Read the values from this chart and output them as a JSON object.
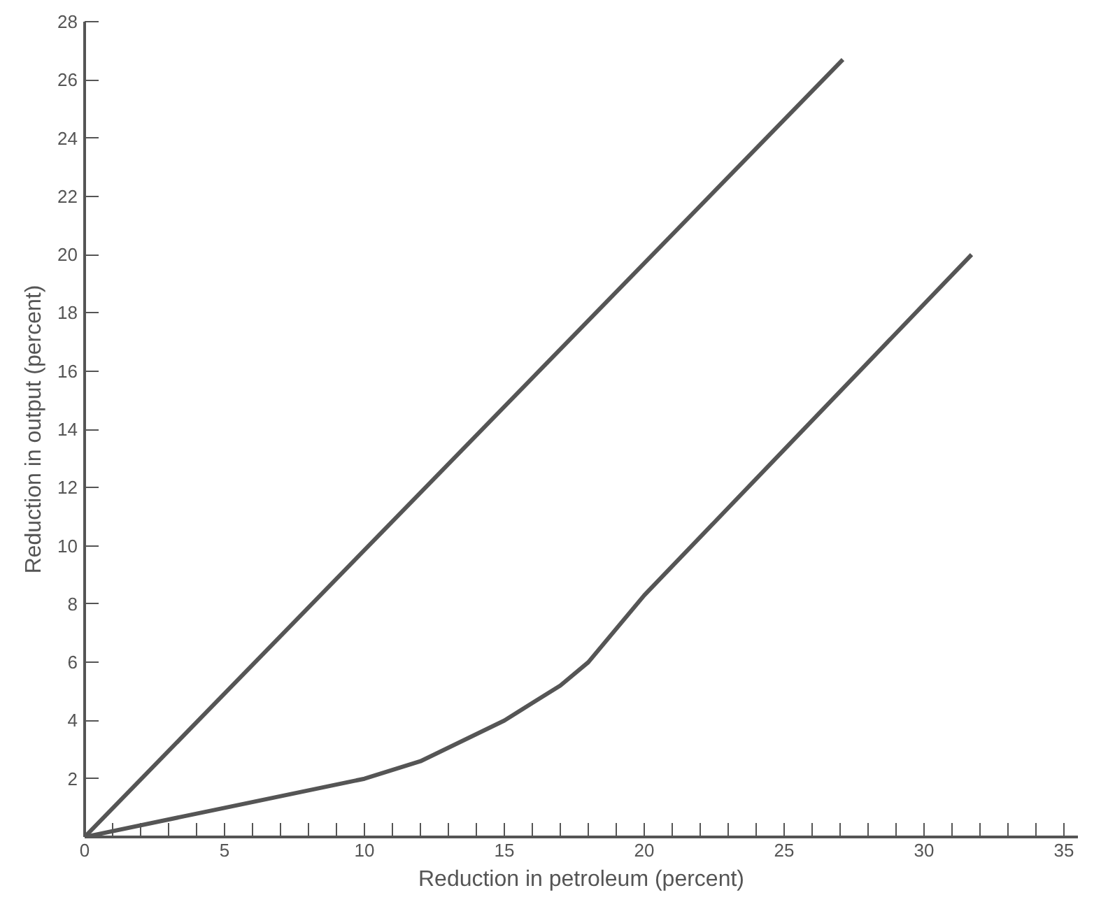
{
  "chart_data": {
    "type": "line",
    "xlabel": "Reduction in petroleum (percent)",
    "ylabel": "Reduction in output (percent)",
    "xlim": [
      0,
      35.5
    ],
    "ylim": [
      0,
      28
    ],
    "xticks": [
      0,
      {
        "value": 1,
        "label": null
      },
      {
        "value": 2,
        "label": null
      },
      {
        "value": 3,
        "label": null
      },
      {
        "value": 4,
        "label": null
      },
      5,
      {
        "value": 6,
        "label": null
      },
      {
        "value": 7,
        "label": null
      },
      {
        "value": 8,
        "label": null
      },
      {
        "value": 9,
        "label": null
      },
      10,
      {
        "value": 11,
        "label": null
      },
      {
        "value": 12,
        "label": null
      },
      {
        "value": 13,
        "label": null
      },
      {
        "value": 14,
        "label": null
      },
      15,
      {
        "value": 16,
        "label": null
      },
      {
        "value": 17,
        "label": null
      },
      {
        "value": 18,
        "label": null
      },
      {
        "value": 19,
        "label": null
      },
      20,
      {
        "value": 21,
        "label": null
      },
      {
        "value": 22,
        "label": null
      },
      {
        "value": 23,
        "label": null
      },
      {
        "value": 24,
        "label": null
      },
      25,
      {
        "value": 26,
        "label": null
      },
      {
        "value": 27,
        "label": null
      },
      {
        "value": 28,
        "label": null
      },
      {
        "value": 29,
        "label": null
      },
      30,
      {
        "value": 31,
        "label": null
      },
      {
        "value": 32,
        "label": null
      },
      {
        "value": 33,
        "label": null
      },
      {
        "value": 34,
        "label": null
      },
      35
    ],
    "yticks": [
      {
        "value": 0,
        "label": null
      },
      2,
      4,
      6,
      8,
      10,
      12,
      14,
      16,
      18,
      20,
      22,
      24,
      26,
      28
    ],
    "line_style": "solid",
    "series": [
      {
        "color": "#555555",
        "x": [
          0,
          27.1
        ],
        "values": [
          0,
          26.7
        ]
      },
      {
        "color": "#555555",
        "x": [
          0,
          5,
          10,
          12,
          15,
          17,
          18,
          20,
          25,
          31.7
        ],
        "values": [
          0,
          1.0,
          2.0,
          2.6,
          4.0,
          5.2,
          6.0,
          8.3,
          13.3,
          20.0
        ]
      }
    ]
  }
}
